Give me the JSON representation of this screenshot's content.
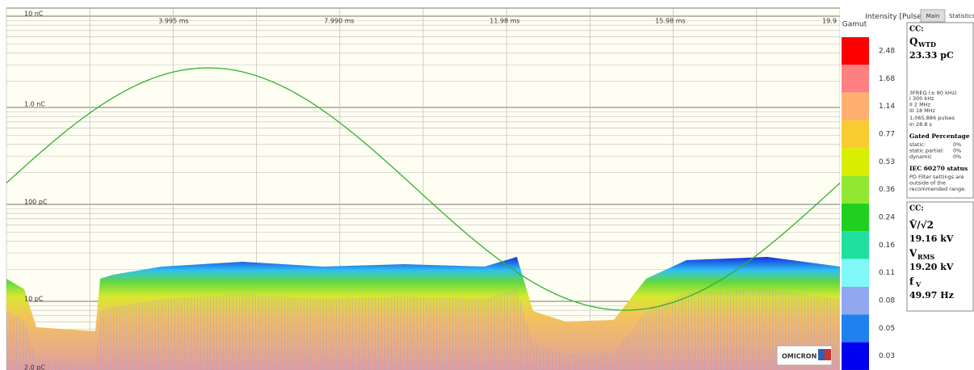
{
  "plot": {
    "y_labels": [
      "10 nC",
      "1.0 nC",
      "100 pC",
      "10 pC",
      "2.0 pC"
    ],
    "x_labels": [
      "3.995 ms",
      "7.990 ms",
      "11.98 ms",
      "15.98 ms",
      "19.9"
    ]
  },
  "gamut": {
    "title": "Gamut",
    "unit": "Intensity [Pulses/s]",
    "levels": [
      {
        "label": "2.48",
        "color": "#ff0000"
      },
      {
        "label": "1.68",
        "color": "#ff8080"
      },
      {
        "label": "1.14",
        "color": "#ffb070"
      },
      {
        "label": "0.77",
        "color": "#f8cc30"
      },
      {
        "label": "0.53",
        "color": "#d8f000"
      },
      {
        "label": "0.36",
        "color": "#90e830"
      },
      {
        "label": "0.24",
        "color": "#20d020"
      },
      {
        "label": "0.16",
        "color": "#20e0a0"
      },
      {
        "label": "0.11",
        "color": "#80f8f8"
      },
      {
        "label": "0.08",
        "color": "#90a8f0"
      },
      {
        "label": "0.05",
        "color": "#2080f0"
      },
      {
        "label": "0.03",
        "color": "#0000f0"
      }
    ]
  },
  "tabs": [
    "Main",
    "Statistics"
  ],
  "panel1": {
    "header": "CC:",
    "q": "Q",
    "q_sub": "WTD",
    "q_value": "23.33 pC",
    "freq_title": "3FREQ (± 80 kHz)",
    "freq_lines": [
      "I   300 kHz",
      "II  2 MHz",
      "III 18 MHz"
    ],
    "pulses": "1,065,886 pulses",
    "duration": "in 28.8 s",
    "gated_title": "Gated Percentage",
    "gated": [
      [
        "static:",
        "0%"
      ],
      [
        "static partial:",
        "0%"
      ],
      [
        "dynamic",
        "0%"
      ]
    ],
    "iec_title": "IEC 60270 status",
    "iec_text": [
      "PD Filter settings are",
      "outside of the",
      "recommended range."
    ]
  },
  "panel2": {
    "header": "CC:",
    "v_peak": "V̂/√2",
    "v_peak_value": "19.16 kV",
    "v_rms": "V",
    "v_rms_sub": "RMS",
    "v_rms_value": "19.20 kV",
    "f": "f",
    "f_sub": "V",
    "f_value": "49.97 Hz"
  },
  "logo": "OMICRON"
}
